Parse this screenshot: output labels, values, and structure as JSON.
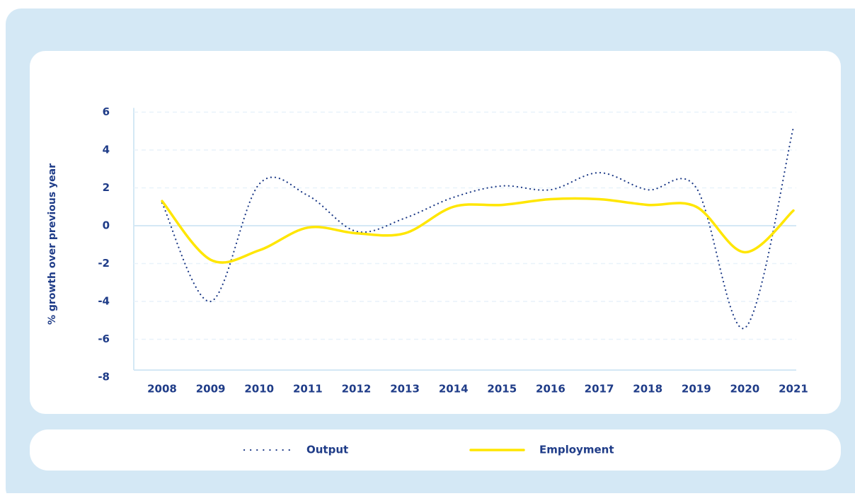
{
  "chart_data": {
    "type": "line",
    "y_label": "% growth over previous year",
    "categories": [
      "2008",
      "2009",
      "2010",
      "2011",
      "2012",
      "2013",
      "2014",
      "2015",
      "2016",
      "2017",
      "2018",
      "2019",
      "2020",
      "2021"
    ],
    "series": [
      {
        "name": "Output",
        "color": "#1f3c88",
        "style": "dotted",
        "values": [
          1.2,
          -4.0,
          2.2,
          1.6,
          -0.3,
          0.4,
          1.5,
          2.1,
          1.9,
          2.8,
          1.9,
          2.0,
          -5.4,
          5.2
        ]
      },
      {
        "name": "Employment",
        "color": "#ffe600",
        "style": "solid",
        "values": [
          1.3,
          -1.8,
          -1.3,
          -0.1,
          -0.4,
          -0.4,
          1.0,
          1.1,
          1.4,
          1.4,
          1.1,
          1.0,
          -1.4,
          0.8
        ]
      }
    ],
    "ylim": [
      -8,
      6
    ],
    "yticks": [
      -8,
      -6,
      -4,
      -2,
      0,
      2,
      4,
      6
    ],
    "grid": true,
    "legend": "bottom"
  }
}
